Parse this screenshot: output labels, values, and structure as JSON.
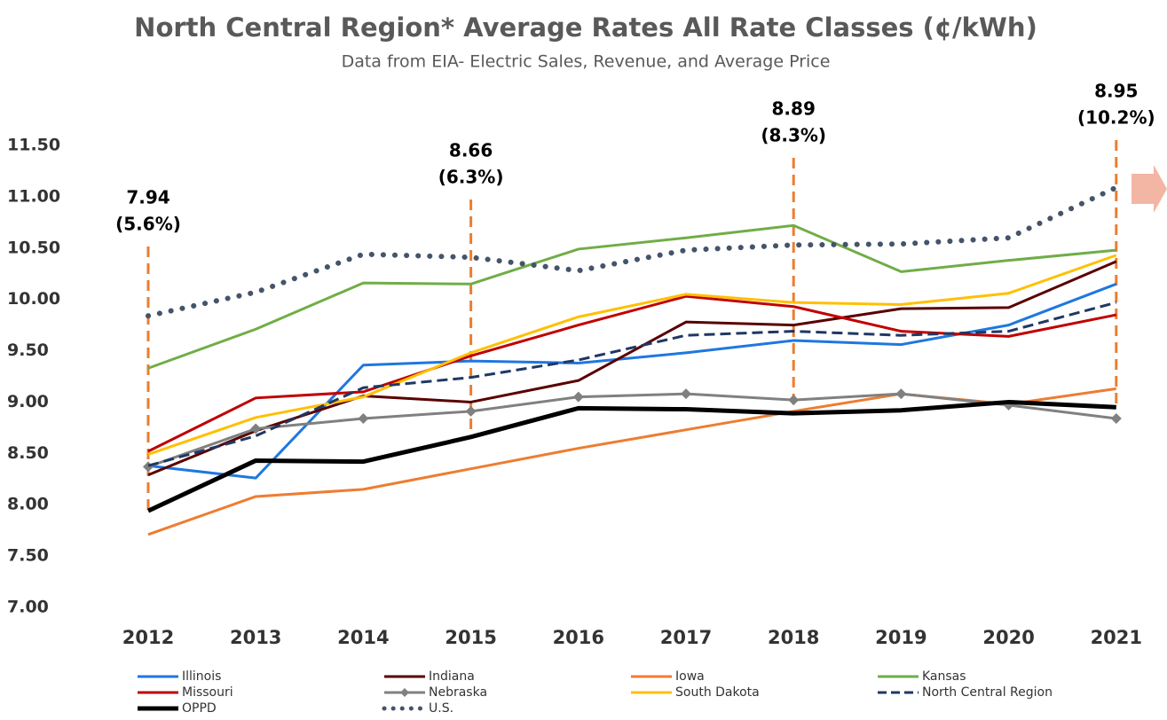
{
  "chart_data": {
    "type": "line",
    "title": "North Central Region* Average Rates All Rate Classes (¢/kWh)",
    "subtitle": "Data from EIA- Electric Sales, Revenue, and Average Price",
    "categories": [
      "2012",
      "2013",
      "2014",
      "2015",
      "2016",
      "2017",
      "2018",
      "2019",
      "2020",
      "2021"
    ],
    "ylim": [
      7.0,
      11.5
    ],
    "yticks": [
      {
        "value": 7.0,
        "label": "7.00"
      },
      {
        "value": 7.5,
        "label": "7.50"
      },
      {
        "value": 8.0,
        "label": "8.00"
      },
      {
        "value": 8.5,
        "label": "8.50"
      },
      {
        "value": 9.0,
        "label": "9.00"
      },
      {
        "value": 9.5,
        "label": "9.50"
      },
      {
        "value": 10.0,
        "label": "10.00"
      },
      {
        "value": 10.5,
        "label": "10.50"
      },
      {
        "value": 11.0,
        "label": "11.00"
      },
      {
        "value": 11.5,
        "label": "11.50"
      }
    ],
    "series": [
      {
        "name": "Illinois",
        "color": "#1f77e0",
        "values": [
          8.38,
          8.26,
          9.36,
          9.4,
          9.38,
          9.48,
          9.6,
          9.56,
          9.75,
          10.15
        ]
      },
      {
        "name": "Indiana",
        "color": "#5a0000",
        "values": [
          8.29,
          8.72,
          9.06,
          9.0,
          9.21,
          9.78,
          9.75,
          9.91,
          9.92,
          10.37
        ]
      },
      {
        "name": "Iowa",
        "color": "#ed7d31",
        "values": [
          7.71,
          8.08,
          8.15,
          8.35,
          8.55,
          8.73,
          8.91,
          9.08,
          8.98,
          9.13
        ]
      },
      {
        "name": "Kansas",
        "color": "#70ad47",
        "values": [
          9.33,
          9.71,
          10.16,
          10.15,
          10.49,
          10.6,
          10.72,
          10.27,
          10.38,
          10.48
        ]
      },
      {
        "name": "Missouri",
        "color": "#c00000",
        "values": [
          8.52,
          9.04,
          9.1,
          9.45,
          9.75,
          10.03,
          9.93,
          9.69,
          9.64,
          9.85
        ]
      },
      {
        "name": "Nebraska",
        "color": "#808080",
        "marker": "diamond",
        "values": [
          8.37,
          8.74,
          8.84,
          8.91,
          9.05,
          9.08,
          9.02,
          9.08,
          8.97,
          8.84
        ]
      },
      {
        "name": "South Dakota",
        "color": "#ffc000",
        "values": [
          8.49,
          8.85,
          9.05,
          9.48,
          9.83,
          10.05,
          9.97,
          9.95,
          10.06,
          10.43
        ]
      },
      {
        "name": "North Central Region",
        "color": "#1f3864",
        "dash": "dashed",
        "values": [
          8.38,
          8.67,
          9.14,
          9.24,
          9.41,
          9.65,
          9.69,
          9.65,
          9.69,
          9.97
        ]
      },
      {
        "name": "OPPD",
        "color": "#000000",
        "width": 5,
        "values": [
          7.94,
          8.43,
          8.42,
          8.66,
          8.94,
          8.93,
          8.89,
          8.92,
          9.0,
          8.95
        ]
      },
      {
        "name": "U.S.",
        "color": "#44546a",
        "dash": "dotted",
        "values": [
          9.84,
          10.07,
          10.44,
          10.41,
          10.28,
          10.48,
          10.53,
          10.54,
          10.6,
          11.09
        ]
      }
    ],
    "annotations": [
      {
        "category": "2012",
        "value": 7.94,
        "change": "(5.6%)"
      },
      {
        "category": "2015",
        "value": 8.66,
        "change": "(6.3%)"
      },
      {
        "category": "2018",
        "value": 8.89,
        "change": "(8.3%)"
      },
      {
        "category": "2021",
        "value": 8.95,
        "change": "(10.2%)"
      }
    ]
  }
}
